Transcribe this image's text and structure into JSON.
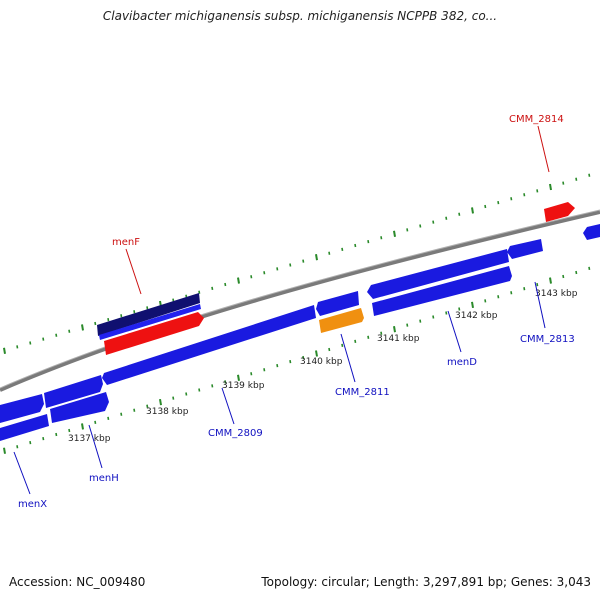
{
  "title": "Clavibacter michiganensis subsp. michiganensis NCPPB 382, co...",
  "footer": {
    "accession": "Accession: NC_009480",
    "summary": "Topology: circular; Length: 3,297,891 bp; Genes: 3,043"
  },
  "colors": {
    "forward_gene": "#1a1ae0",
    "reverse_gene": "#1a1ae0",
    "selected_gene": "#101070",
    "red_gene": "#ee1111",
    "orange_gene": "#f09010",
    "backbone": "#888888",
    "tick": "#2a8a2a",
    "blue_label": "#1010c0",
    "red_label": "#cc1111"
  },
  "kbp_ticks": [
    "3137 kbp",
    "3138 kbp",
    "3139 kbp",
    "3140 kbp",
    "3141 kbp",
    "3142 kbp",
    "3143 kbp"
  ],
  "gene_labels": [
    "menX",
    "menH",
    "CMM_2809",
    "CMM_2811",
    "menD",
    "CMM_2813",
    "menF",
    "CMM_2814"
  ]
}
